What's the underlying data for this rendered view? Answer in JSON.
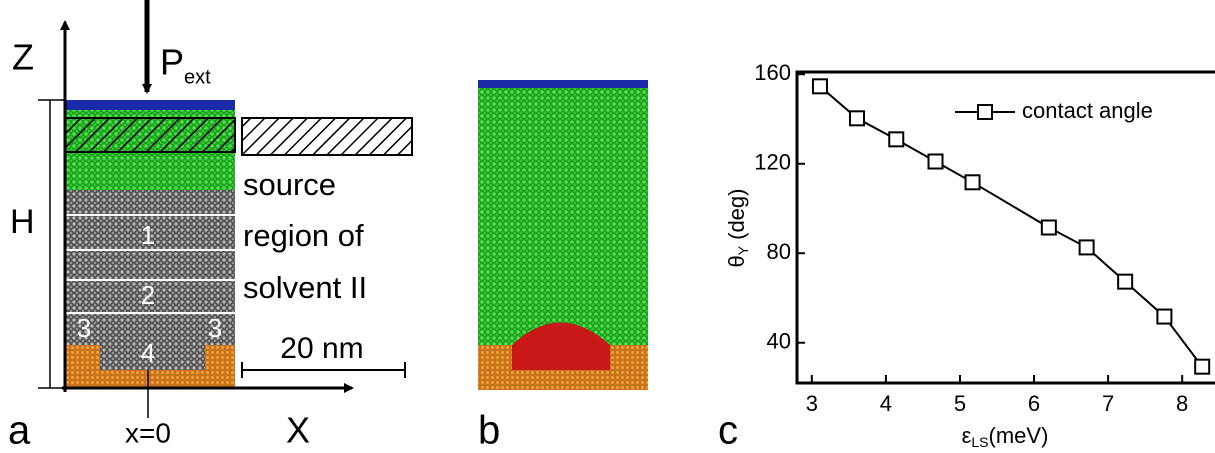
{
  "panel_a": {
    "label": "a",
    "z_axis": "Z",
    "x_axis": "X",
    "force": "P",
    "force_sub": "ext",
    "height": "H",
    "region_label": [
      "source",
      "region of",
      "solvent II"
    ],
    "layers": [
      "1",
      "2",
      "3",
      "3",
      "4"
    ],
    "scale": "20 nm",
    "origin": "x=0"
  },
  "panel_b": {
    "label": "b"
  },
  "chart_data": {
    "type": "line",
    "panel_label": "c",
    "y_label": {
      "symbol": "θ",
      "sub": "Y",
      "unit": "(deg)"
    },
    "x_label": {
      "symbol": "ε",
      "sub": "LS",
      "unit": "(meV)"
    },
    "x": [
      3.11,
      3.61,
      4.14,
      4.67,
      5.17,
      6.2,
      6.71,
      7.23,
      7.76,
      8.27
    ],
    "series": [
      {
        "name": "contact angle",
        "color": "#000000",
        "values": [
          154.6,
          140.3,
          130.9,
          121,
          111.7,
          91.5,
          82.6,
          67.3,
          51.7,
          29.3
        ]
      }
    ],
    "xlim": [
      2.8,
      8.47
    ],
    "ylim": [
      22,
      161
    ],
    "xticks": [
      3,
      4,
      5,
      6,
      7,
      8
    ],
    "yticks": [
      40,
      80,
      120,
      160
    ],
    "legend": "upper right",
    "grid": false
  }
}
